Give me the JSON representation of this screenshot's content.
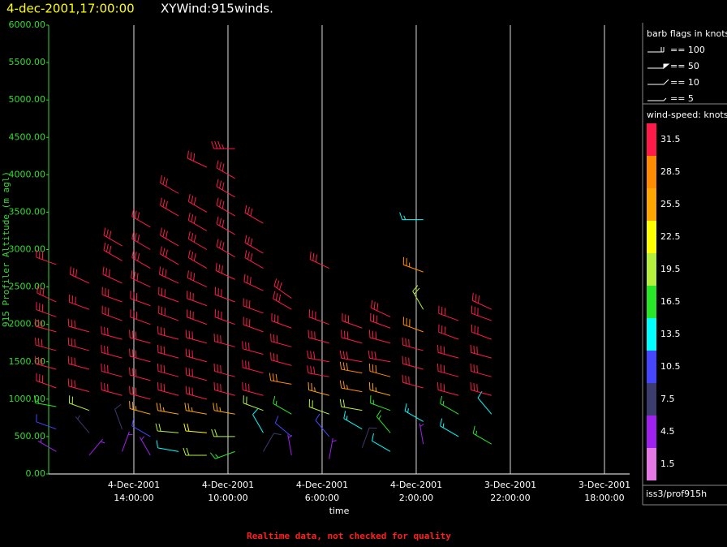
{
  "chart_data": {
    "type": "barb",
    "title": "4-dec-2001,17:00:00",
    "subtitle": "XYWind:915winds.",
    "ylabel": "915 Profiler Altitude (m agl)",
    "xlabel": "time",
    "footer": "Realtime data, not checked for quality",
    "source": "iss3/prof915h",
    "ylim": [
      0,
      6000
    ],
    "yticks": [
      {
        "value": 0,
        "label": "0.00"
      },
      {
        "value": 500,
        "label": "500.00"
      },
      {
        "value": 1000,
        "label": "1000.00"
      },
      {
        "value": 1500,
        "label": "1500.00"
      },
      {
        "value": 2000,
        "label": "2000.00"
      },
      {
        "value": 2500,
        "label": "2500.00"
      },
      {
        "value": 3000,
        "label": "3000.00"
      },
      {
        "value": 3500,
        "label": "3500.00"
      },
      {
        "value": 4000,
        "label": "4000.00"
      },
      {
        "value": 4500,
        "label": "4500.00"
      },
      {
        "value": 5000,
        "label": "5000.00"
      },
      {
        "value": 5500,
        "label": "5500.00"
      },
      {
        "value": 6000,
        "label": "6000.00"
      }
    ],
    "xlim": [
      41.62,
      16.93
    ],
    "xticks": [
      {
        "value": 38,
        "label": "4-Dec-2001\n14:00:00"
      },
      {
        "value": 34,
        "label": "4-Dec-2001\n10:00:00"
      },
      {
        "value": 30,
        "label": "4-Dec-2001\n6:00:00"
      },
      {
        "value": 26,
        "label": "4-Dec-2001\n2:00:00"
      },
      {
        "value": 22,
        "label": "3-Dec-2001\n22:00:00"
      },
      {
        "value": 18,
        "label": "3-Dec-2001\n18:00:00"
      }
    ],
    "grid": true,
    "x": [
      41.3,
      39.9,
      38.5,
      37.3,
      36.1,
      34.9,
      33.7,
      32.5,
      31.3,
      29.7,
      28.3,
      27.1,
      25.7,
      24.2,
      22.8
    ],
    "profiles": [
      [
        [
          300,
          5,
          300
        ],
        [
          600,
          10,
          290
        ],
        [
          900,
          15,
          280
        ],
        [
          1150,
          30,
          290
        ],
        [
          1400,
          31,
          285
        ],
        [
          1650,
          31,
          285
        ],
        [
          1900,
          31,
          285
        ],
        [
          2100,
          31,
          290
        ],
        [
          2300,
          31,
          295
        ],
        [
          2800,
          30,
          290
        ]
      ],
      [
        [
          250,
          4,
          40
        ],
        [
          550,
          7,
          320
        ],
        [
          850,
          20,
          290
        ],
        [
          1100,
          31,
          285
        ],
        [
          1400,
          31,
          285
        ],
        [
          1650,
          31,
          285
        ],
        [
          1900,
          31,
          285
        ],
        [
          2200,
          31,
          290
        ],
        [
          2550,
          31,
          295
        ]
      ],
      [
        [
          300,
          3,
          20
        ],
        [
          600,
          8,
          340
        ],
        [
          1050,
          31,
          285
        ],
        [
          1300,
          31,
          285
        ],
        [
          1550,
          31,
          285
        ],
        [
          1800,
          31,
          285
        ],
        [
          2050,
          31,
          290
        ],
        [
          2300,
          31,
          290
        ],
        [
          2550,
          31,
          295
        ],
        [
          2850,
          31,
          300
        ],
        [
          3050,
          31,
          300
        ]
      ],
      [
        [
          250,
          5,
          330
        ],
        [
          500,
          9,
          300
        ],
        [
          800,
          26,
          285
        ],
        [
          1000,
          31,
          285
        ],
        [
          1250,
          31,
          285
        ],
        [
          1500,
          31,
          285
        ],
        [
          1750,
          31,
          285
        ],
        [
          2000,
          31,
          290
        ],
        [
          2250,
          31,
          290
        ],
        [
          2500,
          31,
          295
        ],
        [
          2750,
          31,
          300
        ],
        [
          3000,
          31,
          300
        ],
        [
          3300,
          31,
          300
        ]
      ],
      [
        [
          300,
          12,
          280
        ],
        [
          550,
          20,
          275
        ],
        [
          800,
          25,
          280
        ],
        [
          1050,
          31,
          285
        ],
        [
          1300,
          31,
          285
        ],
        [
          1550,
          31,
          285
        ],
        [
          1800,
          31,
          285
        ],
        [
          2050,
          31,
          290
        ],
        [
          2300,
          31,
          290
        ],
        [
          2550,
          31,
          295
        ],
        [
          2800,
          31,
          300
        ],
        [
          3050,
          31,
          300
        ],
        [
          3450,
          31,
          300
        ],
        [
          3750,
          31,
          300
        ]
      ],
      [
        [
          250,
          18,
          270
        ],
        [
          550,
          22,
          275
        ],
        [
          800,
          25,
          280
        ],
        [
          1000,
          31,
          285
        ],
        [
          1250,
          31,
          285
        ],
        [
          1500,
          31,
          285
        ],
        [
          1750,
          31,
          285
        ],
        [
          2000,
          31,
          290
        ],
        [
          2250,
          31,
          290
        ],
        [
          2500,
          31,
          295
        ],
        [
          2750,
          31,
          300
        ],
        [
          3000,
          31,
          300
        ],
        [
          3250,
          31,
          300
        ],
        [
          3500,
          31,
          300
        ],
        [
          4100,
          31,
          295
        ]
      ],
      [
        [
          300,
          15,
          250
        ],
        [
          500,
          20,
          270
        ],
        [
          800,
          26,
          280
        ],
        [
          1050,
          31,
          285
        ],
        [
          1300,
          31,
          285
        ],
        [
          1700,
          31,
          285
        ],
        [
          2000,
          31,
          290
        ],
        [
          2300,
          31,
          290
        ],
        [
          2600,
          31,
          295
        ],
        [
          2900,
          31,
          300
        ],
        [
          3200,
          31,
          300
        ],
        [
          3450,
          31,
          300
        ],
        [
          3700,
          31,
          300
        ],
        [
          3950,
          31,
          300
        ],
        [
          4350,
          35,
          270
        ]
      ],
      [
        [
          300,
          8,
          30
        ],
        [
          550,
          12,
          330
        ],
        [
          850,
          20,
          290
        ],
        [
          1050,
          31,
          285
        ],
        [
          1350,
          31,
          285
        ],
        [
          1600,
          31,
          285
        ],
        [
          1900,
          31,
          290
        ],
        [
          2150,
          31,
          290
        ],
        [
          2450,
          31,
          295
        ],
        [
          2750,
          31,
          300
        ],
        [
          2950,
          31,
          300
        ],
        [
          3350,
          31,
          300
        ]
      ],
      [
        [
          250,
          5,
          350
        ],
        [
          500,
          10,
          310
        ],
        [
          800,
          16,
          300
        ],
        [
          1200,
          28,
          280
        ],
        [
          1450,
          31,
          285
        ],
        [
          1700,
          31,
          285
        ],
        [
          1950,
          31,
          290
        ],
        [
          2200,
          31,
          300
        ],
        [
          2350,
          31,
          305
        ]
      ],
      [
        [
          200,
          3,
          10
        ],
        [
          500,
          9,
          320
        ],
        [
          800,
          20,
          290
        ],
        [
          1050,
          26,
          285
        ],
        [
          1300,
          31,
          280
        ],
        [
          1500,
          31,
          280
        ],
        [
          1750,
          31,
          285
        ],
        [
          2000,
          31,
          290
        ],
        [
          2750,
          31,
          295
        ]
      ],
      [
        [
          350,
          8,
          20
        ],
        [
          600,
          14,
          300
        ],
        [
          850,
          18,
          280
        ],
        [
          1100,
          27,
          280
        ],
        [
          1350,
          29,
          280
        ],
        [
          1500,
          31,
          280
        ],
        [
          1750,
          31,
          285
        ],
        [
          1950,
          31,
          290
        ]
      ],
      [
        [
          300,
          12,
          300
        ],
        [
          550,
          15,
          320
        ],
        [
          850,
          17,
          290
        ],
        [
          1050,
          24,
          285
        ],
        [
          1300,
          28,
          285
        ],
        [
          1500,
          31,
          280
        ],
        [
          1750,
          30,
          285
        ],
        [
          1950,
          31,
          290
        ],
        [
          2100,
          30,
          295
        ]
      ],
      [
        [
          400,
          5,
          350
        ],
        [
          700,
          14,
          300
        ],
        [
          1150,
          30,
          285
        ],
        [
          1400,
          31,
          285
        ],
        [
          1650,
          31,
          285
        ],
        [
          1900,
          28,
          290
        ],
        [
          2200,
          18,
          330
        ],
        [
          2700,
          27,
          290
        ],
        [
          3400,
          14,
          270
        ]
      ],
      [
        [
          500,
          14,
          300
        ],
        [
          800,
          16,
          300
        ],
        [
          1050,
          30,
          285
        ],
        [
          1300,
          31,
          285
        ],
        [
          1550,
          31,
          285
        ],
        [
          1800,
          31,
          290
        ],
        [
          2050,
          31,
          290
        ]
      ],
      [
        [
          400,
          16,
          300
        ],
        [
          800,
          12,
          320
        ],
        [
          1050,
          31,
          285
        ],
        [
          1300,
          31,
          285
        ],
        [
          1550,
          31,
          285
        ],
        [
          1800,
          31,
          290
        ],
        [
          2050,
          31,
          290
        ],
        [
          2200,
          31,
          295
        ]
      ]
    ],
    "flags_title": "barb flags in knots",
    "flags": [
      "== 100",
      "== 50",
      "== 10",
      "== 5"
    ],
    "colorbar_title": "wind-speed: knots",
    "colorbar": [
      {
        "value": 31.5,
        "color": "#ff1a4a"
      },
      {
        "value": 28.5,
        "color": "#ff8c00"
      },
      {
        "value": 25.5,
        "color": "#ffa500"
      },
      {
        "value": 22.5,
        "color": "#ffff00"
      },
      {
        "value": 19.5,
        "color": "#b4f03c"
      },
      {
        "value": 16.5,
        "color": "#28e628"
      },
      {
        "value": 13.5,
        "color": "#00ffff"
      },
      {
        "value": 10.5,
        "color": "#4646ff"
      },
      {
        "value": 7.5,
        "color": "#3c3c6e"
      },
      {
        "value": 4.5,
        "color": "#a020f0"
      },
      {
        "value": 1.5,
        "color": "#e678e6"
      }
    ]
  }
}
